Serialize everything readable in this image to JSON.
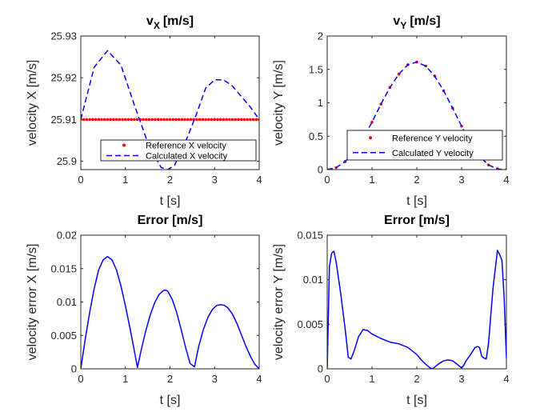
{
  "figure": {
    "background": "#ffffff",
    "axis_color": "#262626"
  },
  "chart_data": [
    {
      "type": "line",
      "title": "v",
      "title_sub": "X",
      "title_unit": "[m/s]",
      "xlabel": "t [s]",
      "ylabel": "velocity X [m/s]",
      "xlim": [
        0,
        4
      ],
      "ylim": [
        25.898,
        25.93
      ],
      "xticks": [
        0,
        1,
        2,
        3,
        4
      ],
      "xtick_labels": [
        "0",
        "1",
        "2",
        "3",
        "4"
      ],
      "yticks": [
        25.9,
        25.91,
        25.92,
        25.93
      ],
      "ytick_labels": [
        "25.9",
        "25.91",
        "25.92",
        "25.93"
      ],
      "legend": {
        "position": "bottom-right",
        "entries": [
          "Reference X velocity",
          "Calculated X velocity"
        ]
      },
      "series": [
        {
          "name": "Reference X velocity",
          "style": "dots",
          "color": "#ff0000",
          "x": [
            0,
            4
          ],
          "y": [
            25.91,
            25.91
          ],
          "dot_count": 61
        },
        {
          "name": "Calculated X velocity",
          "style": "dashed",
          "color": "#0000ff",
          "x": [
            0,
            0.3,
            0.6,
            0.9,
            1.2,
            1.5,
            1.8,
            1.95,
            2.1,
            2.4,
            2.6,
            2.8,
            3.0,
            3.2,
            3.4,
            3.6,
            3.8,
            4.0
          ],
          "y": [
            25.91,
            25.9225,
            25.9265,
            25.923,
            25.9135,
            25.9045,
            25.8985,
            25.898,
            25.899,
            25.906,
            25.9115,
            25.9175,
            25.9195,
            25.9195,
            25.918,
            25.9155,
            25.913,
            25.91
          ]
        }
      ]
    },
    {
      "type": "line",
      "title": "v",
      "title_sub": "Y",
      "title_unit": "[m/s]",
      "xlabel": "t [s]",
      "ylabel": "velocity Y [m/s]",
      "xlim": [
        0,
        4
      ],
      "ylim": [
        0,
        2
      ],
      "xticks": [
        0,
        1,
        2,
        3,
        4
      ],
      "xtick_labels": [
        "0",
        "1",
        "2",
        "3",
        "4"
      ],
      "yticks": [
        0,
        0.5,
        1,
        1.5,
        2
      ],
      "ytick_labels": [
        "0",
        "0.5",
        "1",
        "1.5",
        "2"
      ],
      "legend": {
        "position": "bottom-right",
        "entries": [
          "Reference Y velocity",
          "Calculated Y velocity"
        ]
      },
      "series": [
        {
          "name": "Reference Y velocity",
          "style": "dots",
          "color": "#ff0000",
          "x": [
            0,
            0.2,
            0.4,
            0.6,
            0.8,
            1.0,
            1.2,
            1.4,
            1.6,
            1.8,
            2.0,
            2.2,
            2.4,
            2.6,
            2.8,
            3.0,
            3.2,
            3.4,
            3.6,
            3.8,
            4.0
          ],
          "y": [
            0.0,
            0.03,
            0.12,
            0.27,
            0.47,
            0.71,
            0.98,
            1.23,
            1.43,
            1.57,
            1.61,
            1.55,
            1.4,
            1.18,
            0.92,
            0.65,
            0.4,
            0.2,
            0.07,
            0.01,
            0.0
          ]
        },
        {
          "name": "Calculated Y velocity",
          "style": "dashed",
          "color": "#0000ff",
          "x": [
            0,
            0.2,
            0.4,
            0.6,
            0.8,
            1.0,
            1.2,
            1.4,
            1.6,
            1.8,
            2.0,
            2.2,
            2.4,
            2.6,
            2.8,
            3.0,
            3.2,
            3.4,
            3.6,
            3.8,
            4.0
          ],
          "y": [
            0.0,
            0.03,
            0.12,
            0.27,
            0.47,
            0.71,
            0.98,
            1.23,
            1.43,
            1.57,
            1.61,
            1.55,
            1.4,
            1.18,
            0.92,
            0.65,
            0.4,
            0.2,
            0.07,
            0.01,
            0.0
          ]
        }
      ]
    },
    {
      "type": "line",
      "title": "Error [m/s]",
      "xlabel": "t [s]",
      "ylabel": "velocity error X [m/s]",
      "xlim": [
        0,
        4
      ],
      "ylim": [
        0,
        0.02
      ],
      "xticks": [
        0,
        1,
        2,
        3,
        4
      ],
      "xtick_labels": [
        "0",
        "1",
        "2",
        "3",
        "4"
      ],
      "yticks": [
        0,
        0.005,
        0.01,
        0.015,
        0.02
      ],
      "ytick_labels": [
        "0",
        "0.005",
        "0.01",
        "0.015",
        "0.02"
      ],
      "series": [
        {
          "style": "solid",
          "color": "#0000ff",
          "x": [
            0,
            0.1,
            0.2,
            0.3,
            0.4,
            0.5,
            0.6,
            0.7,
            0.8,
            0.9,
            1.0,
            1.1,
            1.2,
            1.27,
            1.35,
            1.45,
            1.55,
            1.65,
            1.75,
            1.85,
            1.9,
            1.95,
            2.05,
            2.15,
            2.25,
            2.35,
            2.45,
            2.55,
            2.6,
            2.65,
            2.75,
            2.85,
            2.95,
            3.05,
            3.15,
            3.22,
            3.3,
            3.4,
            3.5,
            3.6,
            3.7,
            3.8,
            3.9,
            4.0
          ],
          "y": [
            0,
            0.0045,
            0.0085,
            0.012,
            0.0148,
            0.0163,
            0.0168,
            0.0163,
            0.0148,
            0.0124,
            0.0094,
            0.0062,
            0.0027,
            0.0002,
            0.0027,
            0.0055,
            0.0079,
            0.0098,
            0.0111,
            0.0117,
            0.0118,
            0.0116,
            0.0104,
            0.0084,
            0.0059,
            0.0032,
            0.0008,
            0.0003,
            0.002,
            0.0035,
            0.0059,
            0.0077,
            0.0089,
            0.0095,
            0.0096,
            0.0095,
            0.0091,
            0.0082,
            0.0068,
            0.0051,
            0.0034,
            0.0019,
            0.0007,
            0.0
          ]
        }
      ]
    },
    {
      "type": "line",
      "title": "Error [m/s]",
      "xlabel": "t [s]",
      "ylabel": "velocity error Y [m/s]",
      "xlim": [
        0,
        4
      ],
      "ylim": [
        0,
        0.015
      ],
      "xticks": [
        0,
        1,
        2,
        3,
        4
      ],
      "xtick_labels": [
        "0",
        "1",
        "2",
        "3",
        "4"
      ],
      "yticks": [
        0,
        0.005,
        0.01,
        0.015
      ],
      "ytick_labels": [
        "0",
        "0.005",
        "0.01",
        "0.015"
      ],
      "series": [
        {
          "style": "solid",
          "color": "#0000ff",
          "x": [
            0,
            0.05,
            0.1,
            0.15,
            0.2,
            0.3,
            0.4,
            0.47,
            0.53,
            0.6,
            0.7,
            0.8,
            0.9,
            1.0,
            1.2,
            1.4,
            1.6,
            1.8,
            2.0,
            2.1,
            2.2,
            2.3,
            2.35,
            2.4,
            2.5,
            2.6,
            2.7,
            2.8,
            2.9,
            3.0,
            3.05,
            3.1,
            3.2,
            3.3,
            3.35,
            3.4,
            3.45,
            3.5,
            3.55,
            3.6,
            3.7,
            3.8,
            3.85,
            3.9,
            3.95,
            4.0
          ],
          "y": [
            0.0,
            0.0115,
            0.013,
            0.0132,
            0.012,
            0.0085,
            0.0045,
            0.0013,
            0.0011,
            0.002,
            0.0036,
            0.0044,
            0.0043,
            0.0039,
            0.0034,
            0.003,
            0.0028,
            0.0024,
            0.0016,
            0.001,
            0.0005,
            0.0001,
            0.0,
            0.0002,
            0.0006,
            0.0009,
            0.001,
            0.0009,
            0.0005,
            0.0001,
            0.0004,
            0.0009,
            0.0016,
            0.0024,
            0.0025,
            0.0024,
            0.0014,
            0.0012,
            0.0011,
            0.0028,
            0.009,
            0.0133,
            0.0128,
            0.0122,
            0.008,
            0.0012
          ]
        }
      ]
    }
  ]
}
